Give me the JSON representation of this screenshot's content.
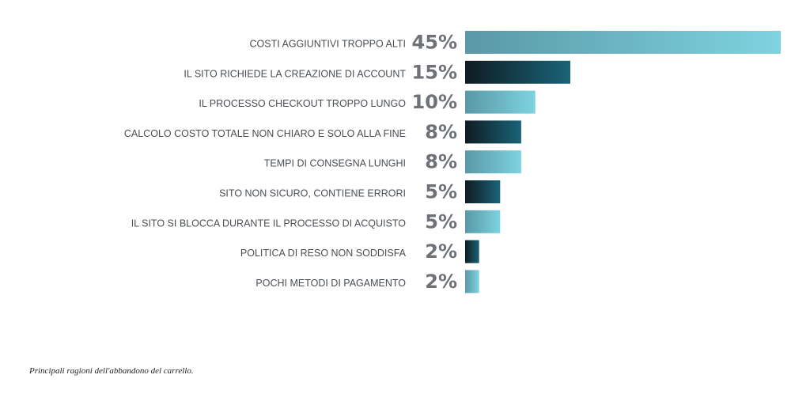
{
  "chart_data": {
    "type": "bar",
    "orientation": "horizontal",
    "categories": [
      "COSTI  AGGIUNTIVI TROPPO ALTI",
      "IL SITO RICHIEDE LA CREAZIONE DI ACCOUNT",
      "IL PROCESSO CHECKOUT TROPPO LUNGO",
      "CALCOLO COSTO TOTALE NON CHIARO E SOLO ALLA FINE",
      "TEMPI DI CONSEGNA LUNGHI",
      "SITO NON SICURO, CONTIENE ERRORI",
      "IL SITO SI BLOCCA DURANTE IL PROCESSO DI ACQUISTO",
      "POLITICA DI RESO NON SODDISFA",
      "POCHI METODI DI PAGAMENTO"
    ],
    "values": [
      45,
      15,
      10,
      8,
      8,
      5,
      5,
      2,
      2
    ],
    "value_labels": [
      "45%",
      "15%",
      "10%",
      "8%",
      "8%",
      "5%",
      "5%",
      "2%",
      "2%"
    ],
    "unit": "%",
    "xlim": [
      0,
      45
    ],
    "grid": false,
    "legend": "none",
    "bar_styles": [
      "light",
      "dark",
      "light",
      "dark",
      "light",
      "dark",
      "light",
      "dark",
      "light"
    ],
    "colors": {
      "light_start": "#5a98a6",
      "light_end": "#7ed3e0",
      "dark_start": "#0f1b22",
      "dark_end": "#1a6478"
    }
  },
  "caption": "Principali ragioni dell'abbandono del carrello."
}
